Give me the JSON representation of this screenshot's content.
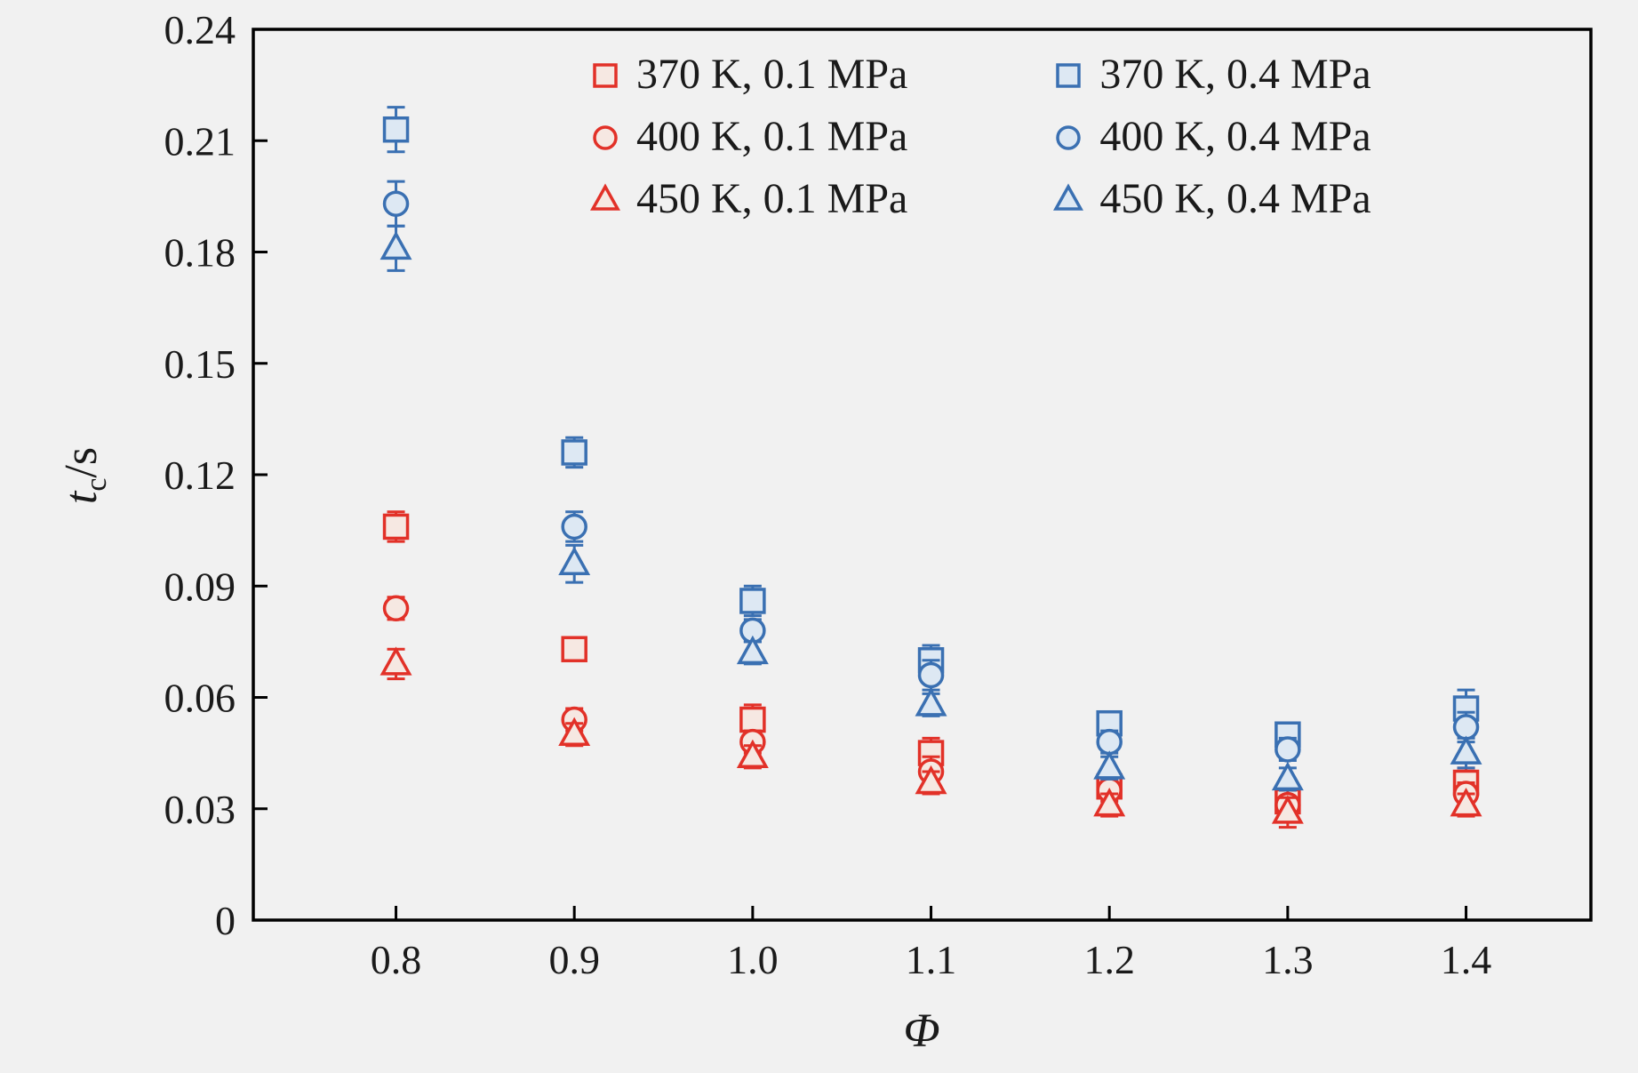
{
  "figure": {
    "background": "#f1f1f1",
    "frame_color": "#000000",
    "text_color": "#1a1a1a"
  },
  "chart_data": {
    "type": "scatter",
    "title": "",
    "xlabel": "Φ",
    "ylabel": "t_c/s",
    "ylabel_parts": {
      "var": "t",
      "sub": "c",
      "unit": "/s"
    },
    "xlim": [
      0.72,
      1.47
    ],
    "ylim": [
      0,
      0.24
    ],
    "grid": false,
    "legend_position": "top-center-inside",
    "xticks": [
      0.8,
      0.9,
      1.0,
      1.1,
      1.2,
      1.3,
      1.4
    ],
    "xtick_labels": [
      "0.8",
      "0.9",
      "1.0",
      "1.1",
      "1.2",
      "1.3",
      "1.4"
    ],
    "yticks": [
      0,
      0.03,
      0.06,
      0.09,
      0.12,
      0.15,
      0.18,
      0.21,
      0.24
    ],
    "ytick_labels": [
      "0",
      "0.03",
      "0.06",
      "0.09",
      "0.12",
      "0.15",
      "0.18",
      "0.21",
      "0.24"
    ],
    "x": [
      0.8,
      0.9,
      1.0,
      1.1,
      1.2,
      1.3,
      1.4
    ],
    "series": [
      {
        "name": "370 K, 0.1 MPa",
        "marker": "square",
        "color": "#e23128",
        "fill": "#f6e8e2",
        "values": [
          0.106,
          0.073,
          0.054,
          0.045,
          0.036,
          0.032,
          0.037
        ],
        "errors": [
          0.004,
          0.003,
          0.004,
          0.004,
          0.003,
          0.004,
          0.004
        ]
      },
      {
        "name": "400 K, 0.1 MPa",
        "marker": "circle",
        "color": "#e23128",
        "fill": "#f6e8e2",
        "values": [
          0.084,
          0.054,
          0.048,
          0.04,
          0.035,
          0.031,
          0.034
        ],
        "errors": [
          0.003,
          0.003,
          0.003,
          0.004,
          0.003,
          0.004,
          0.003
        ]
      },
      {
        "name": "450 K, 0.1 MPa",
        "marker": "triangle",
        "color": "#e23128",
        "fill": "#f6e8e2",
        "values": [
          0.069,
          0.05,
          0.044,
          0.037,
          0.031,
          0.029,
          0.031
        ],
        "errors": [
          0.004,
          0.003,
          0.003,
          0.003,
          0.003,
          0.004,
          0.003
        ]
      },
      {
        "name": "370 K, 0.4 MPa",
        "marker": "square",
        "color": "#3a70b2",
        "fill": "#dde8f3",
        "values": [
          0.213,
          0.126,
          0.086,
          0.07,
          0.053,
          0.05,
          0.057
        ],
        "errors": [
          0.006,
          0.004,
          0.004,
          0.004,
          0.003,
          0.003,
          0.005
        ]
      },
      {
        "name": "400 K, 0.4 MPa",
        "marker": "circle",
        "color": "#3a70b2",
        "fill": "#dde8f3",
        "values": [
          0.193,
          0.106,
          0.078,
          0.066,
          0.048,
          0.046,
          0.052
        ],
        "errors": [
          0.006,
          0.004,
          0.003,
          0.004,
          0.003,
          0.003,
          0.004
        ]
      },
      {
        "name": "450 K, 0.4 MPa",
        "marker": "triangle",
        "color": "#3a70b2",
        "fill": "#dde8f3",
        "values": [
          0.181,
          0.096,
          0.072,
          0.058,
          0.041,
          0.038,
          0.045
        ],
        "errors": [
          0.006,
          0.005,
          0.003,
          0.003,
          0.003,
          0.003,
          0.004
        ]
      }
    ]
  }
}
